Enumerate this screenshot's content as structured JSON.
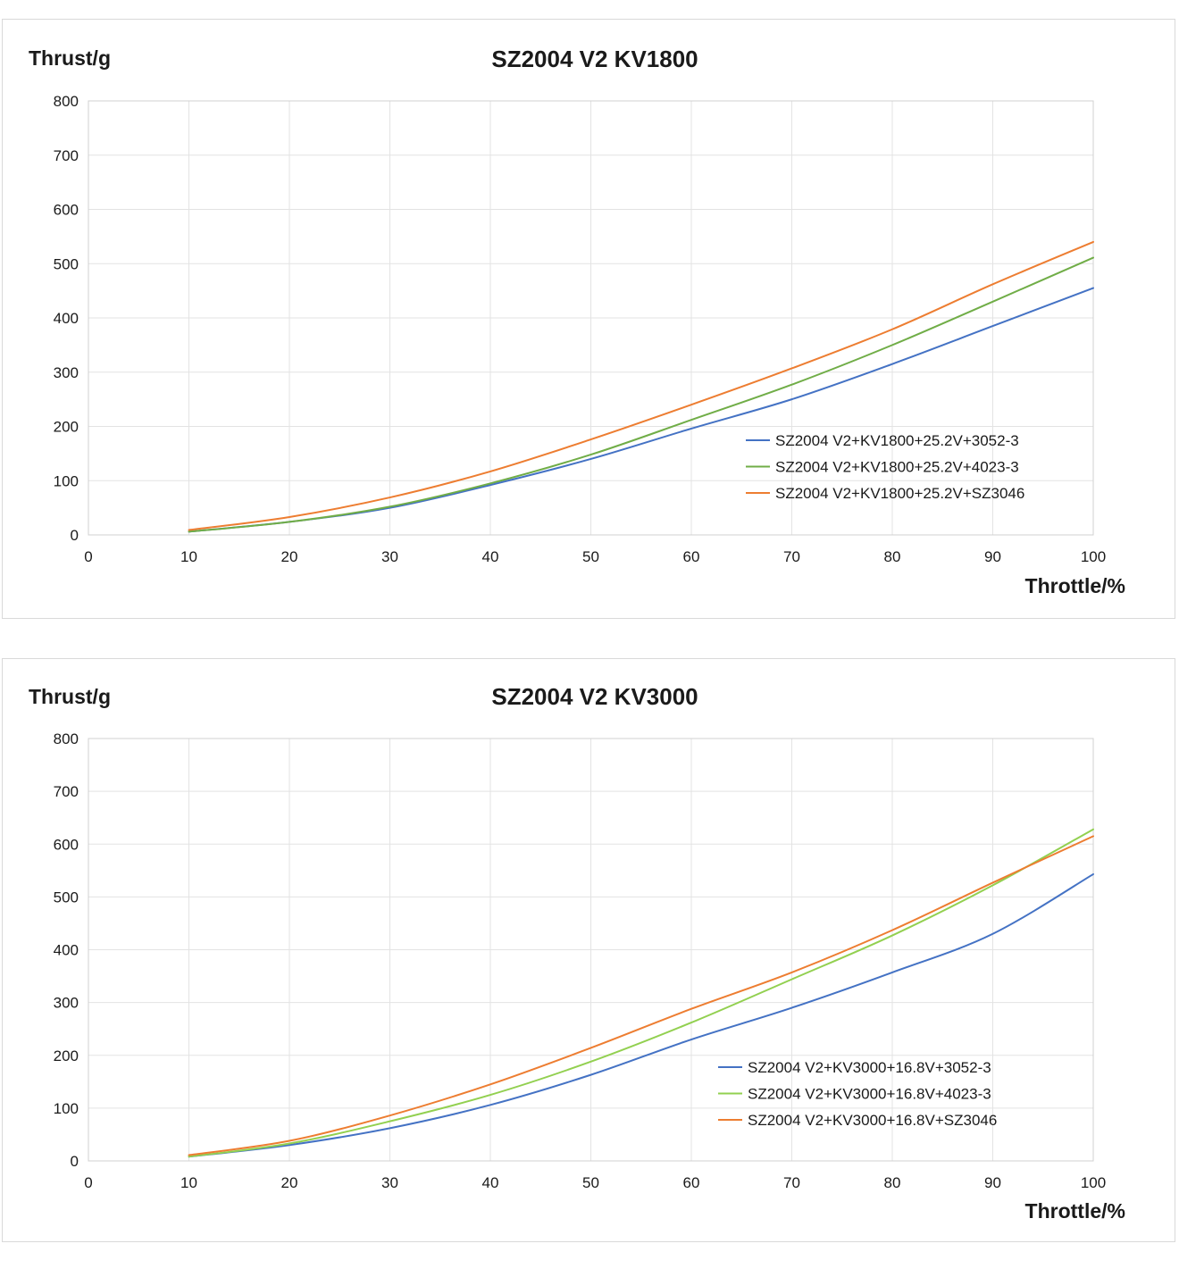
{
  "chart_data": [
    {
      "type": "line",
      "title": "SZ2004 V2 KV1800",
      "ylabel": "Thrust/g",
      "xlabel": "Throttle/%",
      "xlim": [
        0,
        100
      ],
      "ylim": [
        0,
        800
      ],
      "xticks": [
        0,
        10,
        20,
        30,
        40,
        50,
        60,
        70,
        80,
        90,
        100
      ],
      "yticks": [
        0,
        100,
        200,
        300,
        400,
        500,
        600,
        700,
        800
      ],
      "grid": true,
      "legend_position": "right",
      "x": [
        10,
        20,
        30,
        40,
        50,
        60,
        70,
        80,
        90,
        100
      ],
      "series": [
        {
          "name": "SZ2004 V2+KV1800+25.2V+3052-3",
          "color": "#4472c4",
          "values": [
            6,
            24,
            50,
            92,
            140,
            196,
            250,
            315,
            385,
            455
          ]
        },
        {
          "name": "SZ2004 V2+KV1800+25.2V+4023-3",
          "color": "#70ad47",
          "values": [
            6,
            24,
            52,
            95,
            148,
            212,
            277,
            350,
            430,
            511
          ]
        },
        {
          "name": "SZ2004 V2+KV1800+25.2V+SZ3046",
          "color": "#ed7d31",
          "values": [
            9,
            33,
            69,
            117,
            176,
            240,
            307,
            379,
            462,
            540
          ]
        }
      ]
    },
    {
      "type": "line",
      "title": "SZ2004 V2 KV3000",
      "ylabel": "Thrust/g",
      "xlabel": "Throttle/%",
      "xlim": [
        0,
        100
      ],
      "ylim": [
        0,
        800
      ],
      "xticks": [
        0,
        10,
        20,
        30,
        40,
        50,
        60,
        70,
        80,
        90,
        100
      ],
      "yticks": [
        0,
        100,
        200,
        300,
        400,
        500,
        600,
        700,
        800
      ],
      "grid": true,
      "legend_position": "right",
      "x": [
        10,
        20,
        30,
        40,
        50,
        60,
        70,
        80,
        90,
        100
      ],
      "series": [
        {
          "name": "SZ2004 V2+KV3000+16.8V+3052-3",
          "color": "#4472c4",
          "values": [
            8,
            30,
            62,
            106,
            163,
            230,
            290,
            357,
            430,
            543
          ]
        },
        {
          "name": "SZ2004 V2+KV3000+16.8V+4023-3",
          "color": "#92d050",
          "values": [
            8,
            33,
            75,
            125,
            188,
            262,
            344,
            427,
            522,
            628
          ]
        },
        {
          "name": "SZ2004 V2+KV3000+16.8V+SZ3046",
          "color": "#ed7d31",
          "values": [
            11,
            38,
            86,
            145,
            214,
            288,
            357,
            437,
            527,
            615
          ]
        }
      ]
    }
  ]
}
